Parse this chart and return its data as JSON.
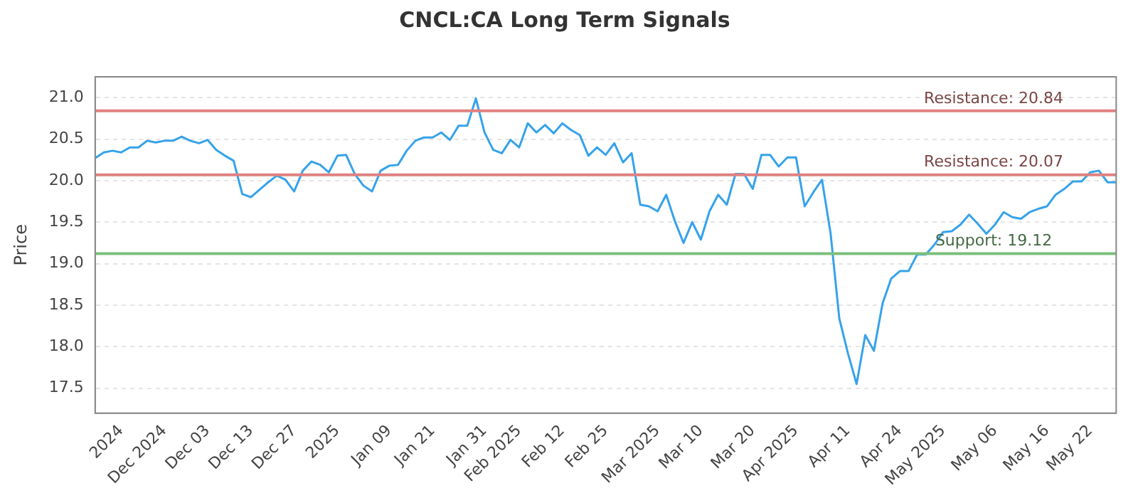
{
  "chart_data": {
    "type": "line",
    "title": "CNCL:CA Long Term Signals",
    "ylabel": "Price",
    "categories": [
      null,
      null,
      null,
      "2024",
      null,
      null,
      null,
      null,
      "Dec 2024",
      null,
      null,
      null,
      null,
      "Dec 03",
      null,
      null,
      null,
      null,
      "Dec 13",
      null,
      null,
      null,
      null,
      "Dec 27",
      null,
      null,
      null,
      null,
      "2025",
      null,
      null,
      null,
      null,
      null,
      "Jan 09",
      null,
      null,
      null,
      null,
      "Jan 21",
      null,
      null,
      null,
      null,
      null,
      "Jan 31",
      null,
      null,
      null,
      "Feb 2025",
      null,
      null,
      null,
      null,
      "Feb 12",
      null,
      null,
      null,
      null,
      "Feb 25",
      null,
      null,
      null,
      null,
      null,
      "Mar 2025",
      null,
      null,
      null,
      null,
      "Mar 10",
      null,
      null,
      null,
      null,
      null,
      "Mar 20",
      null,
      null,
      null,
      null,
      "Apr 2025",
      null,
      null,
      null,
      null,
      null,
      "Apr 11",
      null,
      null,
      null,
      null,
      null,
      "Apr 24",
      null,
      null,
      null,
      null,
      "May 2025",
      null,
      null,
      null,
      null,
      null,
      "May 06",
      null,
      null,
      null,
      null,
      null,
      "May 16",
      null,
      null,
      null,
      null,
      "May 22",
      null,
      null,
      null
    ],
    "series": [
      {
        "color": "#36a2eb",
        "values": [
          20.27,
          20.34,
          20.36,
          20.34,
          20.4,
          20.4,
          20.48,
          20.46,
          20.48,
          20.48,
          20.53,
          20.48,
          20.45,
          20.49,
          20.37,
          20.3,
          20.24,
          19.84,
          19.8,
          19.89,
          19.98,
          20.06,
          20.01,
          19.87,
          20.12,
          20.23,
          20.19,
          20.1,
          20.3,
          20.31,
          20.08,
          19.94,
          19.87,
          20.12,
          20.18,
          20.19,
          20.36,
          20.48,
          20.52,
          20.52,
          20.58,
          20.49,
          20.66,
          20.66,
          20.99,
          20.58,
          20.37,
          20.33,
          20.49,
          20.4,
          20.69,
          20.58,
          20.67,
          20.57,
          20.69,
          20.61,
          20.55,
          20.3,
          20.4,
          20.31,
          20.45,
          20.22,
          20.33,
          19.71,
          19.69,
          19.63,
          19.83,
          19.51,
          19.25,
          19.5,
          19.29,
          19.63,
          19.83,
          19.71,
          20.08,
          20.08,
          19.9,
          20.31,
          20.31,
          20.17,
          20.28,
          20.28,
          19.69,
          19.86,
          20.01,
          19.36,
          18.34,
          17.92,
          17.55,
          18.14,
          17.95,
          18.52,
          18.82,
          18.91,
          18.91,
          19.11,
          19.11,
          19.23,
          19.38,
          19.39,
          19.47,
          19.59,
          19.48,
          19.36,
          19.47,
          19.62,
          19.56,
          19.54,
          19.62,
          19.66,
          19.69,
          19.83,
          19.9,
          19.99,
          19.99,
          20.1,
          20.12,
          19.98,
          19.98
        ]
      }
    ],
    "ylim": [
      17.2,
      21.25
    ],
    "yticks": [
      17.5,
      {
        "value": 18,
        "label": "18.0"
      },
      18.5,
      {
        "value": 19,
        "label": "19.0"
      },
      19.5,
      {
        "value": 20,
        "label": "20.0"
      },
      20.5,
      {
        "value": 21,
        "label": "21.0"
      }
    ],
    "ref_lines": [
      {
        "axis": "y",
        "value": 20.84,
        "label": "Resistance: 20.84",
        "color": "#e08080"
      },
      {
        "axis": "y",
        "value": 20.07,
        "label": "Resistance: 20.07",
        "color": "#e08080"
      },
      {
        "axis": "y",
        "value": 19.12,
        "label": "Support: 19.12",
        "color": "#7cbf7c"
      }
    ],
    "grid": "y",
    "legend": false,
    "marker": "none",
    "line_style": "solid"
  }
}
